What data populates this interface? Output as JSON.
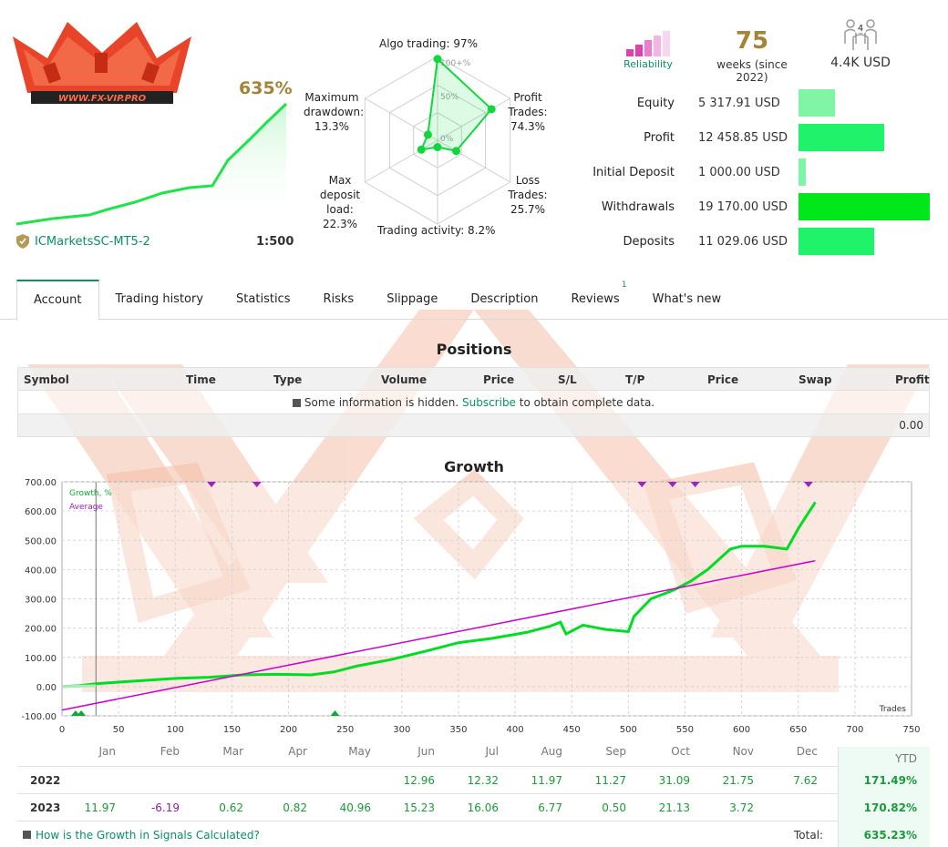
{
  "header": {
    "logo_text": "WWW.FX-VIP.PRO",
    "gain": "635%",
    "broker": "ICMarketsSC-MT5-2",
    "leverage": "1:500"
  },
  "radar": {
    "algo_trading": "Algo trading: 97%",
    "max_drawdown": [
      "Maximum",
      "drawdown:",
      "13.3%"
    ],
    "profit_trades": [
      "Profit",
      "Trades:",
      "74.3%"
    ],
    "loss_trades": [
      "Loss",
      "Trades:",
      "25.7%"
    ],
    "max_deposit_load": [
      "Max",
      "deposit",
      "load:",
      "22.3%"
    ],
    "trading_activity": "Trading activity: 8.2%",
    "ring_labels": [
      "100+%",
      "50%",
      "0%"
    ],
    "values": {
      "algo": 0.97,
      "profit": 0.743,
      "loss": 0.257,
      "activity": 0.082,
      "load": 0.223,
      "drawdown": 0.133
    }
  },
  "stats": {
    "reliability_label": "Reliability",
    "weeks": "75",
    "weeks_label": "weeks (since 2022)",
    "subscribers_badge": "4",
    "funds": "4.4K USD",
    "colors": {
      "reliability": "#e040b0"
    }
  },
  "money": [
    {
      "label": "Equity",
      "value": "5 317.91 USD",
      "amount": 5317.91,
      "color": "#7ff5a5"
    },
    {
      "label": "Profit",
      "value": "12 458.85 USD",
      "amount": 12458.85,
      "color": "#1ef36a"
    },
    {
      "label": "Initial Deposit",
      "value": "1 000.00 USD",
      "amount": 1000.0,
      "color": "#7ff5a5"
    },
    {
      "label": "Withdrawals",
      "value": "19 170.00 USD",
      "amount": 19170.0,
      "color": "#00e81a"
    },
    {
      "label": "Deposits",
      "value": "11 029.06 USD",
      "amount": 11029.06,
      "color": "#1ef36a"
    }
  ],
  "tabs": [
    {
      "label": "Account",
      "active": true
    },
    {
      "label": "Trading history"
    },
    {
      "label": "Statistics"
    },
    {
      "label": "Risks"
    },
    {
      "label": "Slippage"
    },
    {
      "label": "Description"
    },
    {
      "label": "Reviews",
      "badge": "1"
    },
    {
      "label": "What's new"
    }
  ],
  "positions": {
    "title": "Positions",
    "columns": [
      "Symbol",
      "Time",
      "Type",
      "Volume",
      "Price",
      "S/L",
      "T/P",
      "Price",
      "Swap",
      "Profit"
    ],
    "info_before": "Some information is hidden.",
    "info_link": "Subscribe",
    "info_after": "to obtain complete data.",
    "total": "0.00"
  },
  "growth": {
    "title": "Growth",
    "legend_growth": "Growth, %",
    "legend_average": "Average",
    "trades_label": "Trades"
  },
  "chart_data": {
    "type": "line",
    "title": "Growth",
    "xlabel": "Trades",
    "ylabel": "",
    "xlim": [
      0,
      750
    ],
    "ylim": [
      -100,
      700
    ],
    "x_ticks": [
      0,
      50,
      100,
      150,
      200,
      250,
      300,
      350,
      400,
      450,
      500,
      550,
      600,
      650,
      700,
      750
    ],
    "y_ticks": [
      "-100.00",
      "0.00",
      "100.00",
      "200.00",
      "300.00",
      "400.00",
      "500.00",
      "600.00",
      "700.00"
    ],
    "grid": true,
    "legend_position": "top-left",
    "series": [
      {
        "name": "Growth, %",
        "color": "#00dd22",
        "x": [
          0,
          15,
          30,
          60,
          100,
          130,
          160,
          190,
          220,
          240,
          260,
          290,
          320,
          350,
          380,
          410,
          430,
          440,
          445,
          460,
          480,
          500,
          505,
          520,
          540,
          555,
          570,
          590,
          600,
          620,
          640,
          650,
          665
        ],
        "y": [
          0,
          3,
          10,
          18,
          28,
          32,
          40,
          42,
          40,
          50,
          70,
          92,
          120,
          150,
          165,
          185,
          205,
          220,
          180,
          210,
          195,
          188,
          240,
          300,
          330,
          360,
          400,
          470,
          480,
          480,
          470,
          540,
          630
        ]
      },
      {
        "name": "Average",
        "color": "#cc00cc",
        "x": [
          0,
          665
        ],
        "y": [
          -80,
          430
        ]
      }
    ],
    "top_markers_x": [
      132,
      172,
      512,
      539,
      559,
      659
    ],
    "bottom_markers_x": [
      12,
      17,
      241
    ]
  },
  "monthly": {
    "months": [
      "Jan",
      "Feb",
      "Mar",
      "Apr",
      "May",
      "Jun",
      "Jul",
      "Aug",
      "Sep",
      "Oct",
      "Nov",
      "Dec"
    ],
    "ytd_label": "YTD",
    "rows": [
      {
        "year": "2022",
        "values": [
          "",
          "",
          "",
          "",
          "",
          "12.96",
          "12.32",
          "11.97",
          "11.27",
          "31.09",
          "21.75",
          "7.62"
        ],
        "ytd": "171.49%"
      },
      {
        "year": "2023",
        "values": [
          "11.97",
          "-6.19",
          "0.62",
          "0.82",
          "40.96",
          "15.23",
          "16.06",
          "6.77",
          "0.50",
          "21.13",
          "3.72",
          ""
        ],
        "ytd": "170.82%"
      }
    ],
    "help_link": "How is the Growth in Signals Calculated?",
    "total_label": "Total:",
    "total_value": "635.23%"
  }
}
